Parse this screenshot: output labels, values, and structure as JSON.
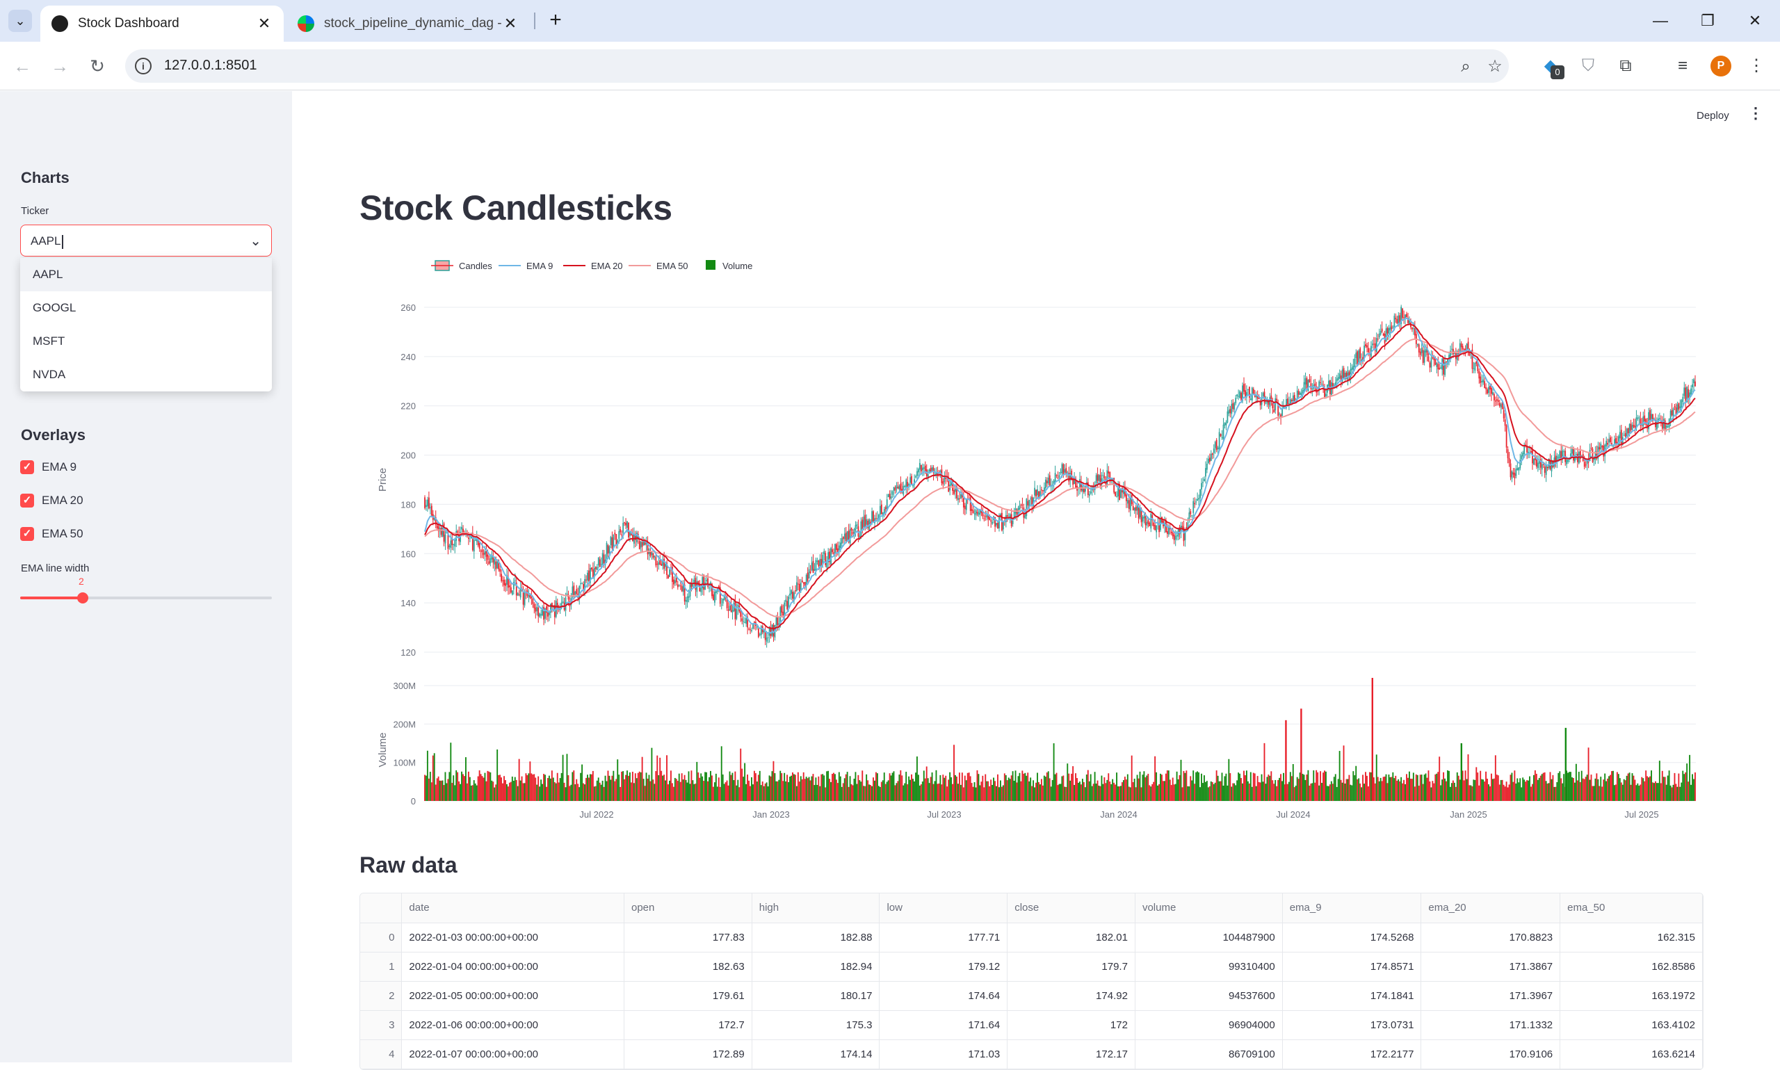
{
  "browser": {
    "tabs": [
      {
        "title": "Stock Dashboard",
        "active": true,
        "icon": "streamlit-crown-icon"
      },
      {
        "title": "stock_pipeline_dynamic_dag - C",
        "active": false,
        "icon": "airflow-pinwheel-icon"
      }
    ],
    "url": "127.0.0.1:8501",
    "extension_badge": "0",
    "profile_initial": "P"
  },
  "app": {
    "deploy_label": "Deploy",
    "title": "Stock Candlesticks",
    "raw_data_title": "Raw data"
  },
  "sidebar": {
    "charts_heading": "Charts",
    "ticker_label": "Ticker",
    "ticker_value": "AAPL",
    "ticker_options": [
      "AAPL",
      "GOOGL",
      "MSFT",
      "NVDA"
    ],
    "overlays_heading": "Overlays",
    "overlays": [
      {
        "label": "EMA 9",
        "checked": true
      },
      {
        "label": "EMA 20",
        "checked": true
      },
      {
        "label": "EMA 50",
        "checked": true
      }
    ],
    "ema_width_label": "EMA line width",
    "ema_width_value": "2",
    "ema_width_range": [
      1,
      10
    ]
  },
  "colors": {
    "accent": "#ff4b4b",
    "up": "#2aa198",
    "down": "#e8202a",
    "ema9": "#6fb7e6",
    "ema20": "#d6121f",
    "ema50": "#f29a9a",
    "volume_up": "#138a13"
  },
  "chart_data": {
    "type": "candlestick",
    "legend": [
      "Candles",
      "EMA 9",
      "EMA 20",
      "EMA 50",
      "Volume"
    ],
    "price_axis": {
      "label": "Price",
      "ticks": [
        "120",
        "140",
        "160",
        "180",
        "200",
        "220",
        "240",
        "260"
      ],
      "ylim": [
        120,
        260
      ]
    },
    "volume_axis": {
      "label": "Volume",
      "ticks": [
        "0",
        "100M",
        "200M",
        "300M"
      ]
    },
    "x_ticks": [
      "Jul 2022",
      "Jan 2023",
      "Jul 2023",
      "Jan 2024",
      "Jul 2024",
      "Jan 2025",
      "Jul 2025"
    ],
    "price_path": [
      [
        0,
        182
      ],
      [
        0.3,
        172
      ],
      [
        0.6,
        165
      ],
      [
        1.0,
        168
      ],
      [
        1.5,
        160
      ],
      [
        2.0,
        150
      ],
      [
        2.5,
        142
      ],
      [
        3.0,
        135
      ],
      [
        3.5,
        140
      ],
      [
        4.0,
        148
      ],
      [
        4.5,
        160
      ],
      [
        5.0,
        172
      ],
      [
        5.5,
        162
      ],
      [
        6.0,
        155
      ],
      [
        6.5,
        144
      ],
      [
        7.0,
        148
      ],
      [
        7.5,
        140
      ],
      [
        8.0,
        134
      ],
      [
        8.3,
        128
      ],
      [
        8.6,
        126
      ],
      [
        9.0,
        138
      ],
      [
        9.5,
        150
      ],
      [
        10.0,
        158
      ],
      [
        10.5,
        165
      ],
      [
        11.0,
        172
      ],
      [
        11.5,
        180
      ],
      [
        12.0,
        188
      ],
      [
        12.5,
        195
      ],
      [
        13.0,
        190
      ],
      [
        13.5,
        180
      ],
      [
        14.0,
        175
      ],
      [
        14.5,
        172
      ],
      [
        15.0,
        178
      ],
      [
        15.5,
        188
      ],
      [
        16.0,
        195
      ],
      [
        16.5,
        185
      ],
      [
        17.0,
        192
      ],
      [
        17.5,
        183
      ],
      [
        18.0,
        175
      ],
      [
        18.5,
        170
      ],
      [
        19.0,
        168
      ],
      [
        19.5,
        190
      ],
      [
        20.0,
        212
      ],
      [
        20.5,
        226
      ],
      [
        21.0,
        222
      ],
      [
        21.5,
        218
      ],
      [
        22.0,
        228
      ],
      [
        22.5,
        226
      ],
      [
        23.0,
        232
      ],
      [
        23.5,
        242
      ],
      [
        24.0,
        248
      ],
      [
        24.5,
        258
      ],
      [
        25.0,
        240
      ],
      [
        25.5,
        236
      ],
      [
        26.0,
        245
      ],
      [
        26.5,
        230
      ],
      [
        27.0,
        216
      ],
      [
        27.2,
        190
      ],
      [
        27.5,
        202
      ],
      [
        28.0,
        196
      ],
      [
        28.5,
        200
      ],
      [
        29.0,
        198
      ],
      [
        29.5,
        202
      ],
      [
        30.0,
        208
      ],
      [
        30.5,
        215
      ],
      [
        31.0,
        212
      ],
      [
        31.5,
        224
      ],
      [
        31.8,
        228
      ]
    ],
    "price_path_domain": [
      0,
      31.8
    ],
    "volume_avg": "~60M",
    "volume_peak_values": [
      "~210M",
      "~240M",
      "~320M",
      "~190M"
    ]
  },
  "table": {
    "columns": [
      "",
      "date",
      "open",
      "high",
      "low",
      "close",
      "volume",
      "ema_9",
      "ema_20",
      "ema_50"
    ],
    "rows": [
      [
        "0",
        "2022-01-03 00:00:00+00:00",
        "177.83",
        "182.88",
        "177.71",
        "182.01",
        "104487900",
        "174.5268",
        "170.8823",
        "162.315"
      ],
      [
        "1",
        "2022-01-04 00:00:00+00:00",
        "182.63",
        "182.94",
        "179.12",
        "179.7",
        "99310400",
        "174.8571",
        "171.3867",
        "162.8586"
      ],
      [
        "2",
        "2022-01-05 00:00:00+00:00",
        "179.61",
        "180.17",
        "174.64",
        "174.92",
        "94537600",
        "174.1841",
        "171.3967",
        "163.1972"
      ],
      [
        "3",
        "2022-01-06 00:00:00+00:00",
        "172.7",
        "175.3",
        "171.64",
        "172",
        "96904000",
        "173.0731",
        "171.1332",
        "163.4102"
      ],
      [
        "4",
        "2022-01-07 00:00:00+00:00",
        "172.89",
        "174.14",
        "171.03",
        "172.17",
        "86709100",
        "172.2177",
        "170.9106",
        "163.6214"
      ]
    ]
  }
}
